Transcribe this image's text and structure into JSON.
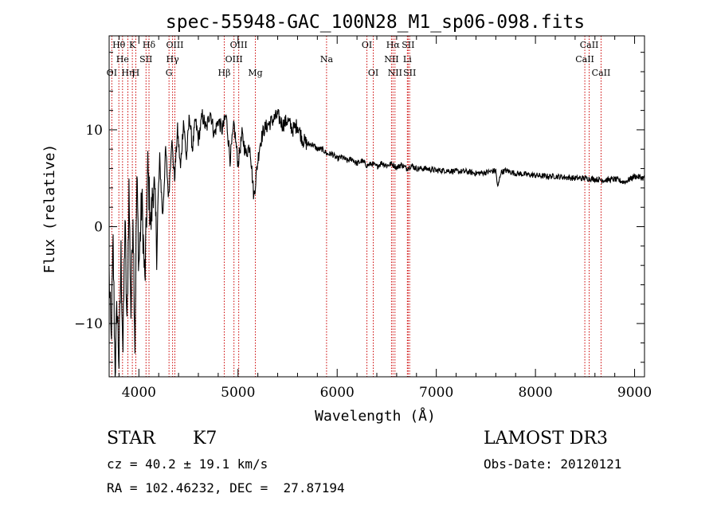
{
  "chart_data": {
    "type": "line",
    "title": "spec-55948-GAC_100N28_M1_sp06-098.fits",
    "xlabel": "Wavelength (Å)",
    "ylabel": "Flux (relative)",
    "xlim": [
      3700,
      9100
    ],
    "ylim": [
      -15.5,
      19.7
    ],
    "x_ticks": [
      4000,
      5000,
      6000,
      7000,
      8000,
      9000
    ],
    "y_ticks": [
      -10,
      0,
      10
    ],
    "x_tick_labels": [
      "4000",
      "5000",
      "6000",
      "7000",
      "8000",
      "9000"
    ],
    "y_tick_labels": [
      "−10",
      "0",
      "10"
    ],
    "grid": false,
    "legend": "none",
    "series": [
      {
        "name": "flux",
        "x": [
          3700,
          3720,
          3740,
          3760,
          3780,
          3800,
          3820,
          3840,
          3860,
          3880,
          3900,
          3920,
          3940,
          3960,
          3980,
          4000,
          4030,
          4060,
          4090,
          4120,
          4150,
          4180,
          4210,
          4240,
          4270,
          4300,
          4330,
          4360,
          4390,
          4420,
          4450,
          4480,
          4510,
          4540,
          4570,
          4600,
          4640,
          4680,
          4720,
          4760,
          4800,
          4840,
          4880,
          4920,
          4960,
          5000,
          5040,
          5080,
          5120,
          5160,
          5190,
          5220,
          5260,
          5300,
          5350,
          5400,
          5450,
          5500,
          5550,
          5600,
          5650,
          5700,
          5750,
          5800,
          5850,
          5900,
          5950,
          6000,
          6050,
          6100,
          6150,
          6200,
          6250,
          6300,
          6350,
          6400,
          6450,
          6500,
          6550,
          6600,
          6650,
          6700,
          6750,
          6800,
          6900,
          7000,
          7100,
          7200,
          7300,
          7400,
          7500,
          7600,
          7620,
          7650,
          7700,
          7800,
          7900,
          8000,
          8100,
          8200,
          8300,
          8400,
          8500,
          8600,
          8700,
          8800,
          8900,
          9000,
          9100
        ],
        "y": [
          -5,
          -12,
          -2,
          -15,
          -8,
          -14,
          -3,
          -13,
          1,
          -11,
          4,
          -9,
          2,
          -12,
          5,
          -4,
          3,
          -6,
          6,
          0,
          5,
          -2,
          7,
          1,
          8,
          3,
          9,
          5,
          10,
          6,
          11,
          7,
          11.5,
          8,
          11,
          9,
          11.5,
          10,
          12,
          9.5,
          11,
          10,
          11.5,
          7,
          10.5,
          6.5,
          9.5,
          7.5,
          8.5,
          3,
          6,
          8.5,
          10,
          10.5,
          11,
          11.5,
          10.5,
          11,
          10,
          10.5,
          9,
          8.5,
          8.5,
          8,
          8,
          7.5,
          7.5,
          7,
          7.2,
          6.8,
          7,
          6.5,
          6.8,
          6.3,
          6.5,
          6.2,
          6.6,
          6.3,
          6.5,
          6.1,
          6.4,
          6,
          6.3,
          6,
          6,
          5.8,
          5.8,
          5.7,
          5.7,
          5.5,
          5.6,
          5.8,
          4,
          5.6,
          5.8,
          5.5,
          5.4,
          5.3,
          5.2,
          5.2,
          5.1,
          5,
          5,
          4.9,
          4.8,
          4.9,
          4.6,
          5.2,
          5
        ]
      }
    ],
    "line_markers": [
      {
        "label": "OI",
        "wavelength": 3727,
        "row": 2
      },
      {
        "label": "Hθ",
        "wavelength": 3798,
        "row": 0
      },
      {
        "label": "He",
        "wavelength": 3835,
        "row": 1
      },
      {
        "label": "Hη",
        "wavelength": 3889,
        "row": 2
      },
      {
        "label": "K",
        "wavelength": 3934,
        "row": 0
      },
      {
        "label": "H",
        "wavelength": 3969,
        "row": 2
      },
      {
        "label": "SII",
        "wavelength": 4072,
        "row": 1
      },
      {
        "label": "Hδ",
        "wavelength": 4102,
        "row": 0
      },
      {
        "label": "G",
        "wavelength": 4304,
        "row": 2
      },
      {
        "label": "Hγ",
        "wavelength": 4340,
        "row": 1
      },
      {
        "label": "OIII",
        "wavelength": 4363,
        "row": 0
      },
      {
        "label": "Hβ",
        "wavelength": 4861,
        "row": 2
      },
      {
        "label": "OIII",
        "wavelength": 4959,
        "row": 1
      },
      {
        "label": "OIII",
        "wavelength": 5007,
        "row": 0
      },
      {
        "label": "Mg",
        "wavelength": 5175,
        "row": 2
      },
      {
        "label": "Na",
        "wavelength": 5893,
        "row": 1
      },
      {
        "label": "OI",
        "wavelength": 6300,
        "row": 0
      },
      {
        "label": "OI",
        "wavelength": 6364,
        "row": 2
      },
      {
        "label": "NII",
        "wavelength": 6548,
        "row": 1
      },
      {
        "label": "Hα",
        "wavelength": 6563,
        "row": 0
      },
      {
        "label": "NII",
        "wavelength": 6583,
        "row": 2
      },
      {
        "label": "Li",
        "wavelength": 6708,
        "row": 1
      },
      {
        "label": "SII",
        "wavelength": 6716,
        "row": 0
      },
      {
        "label": "SII",
        "wavelength": 6731,
        "row": 2
      },
      {
        "label": "CaII",
        "wavelength": 8498,
        "row": 1
      },
      {
        "label": "CaII",
        "wavelength": 8542,
        "row": 0
      },
      {
        "label": "CaII",
        "wavelength": 8662,
        "row": 2
      }
    ],
    "colors": {
      "marker": "#cc0000",
      "trace": "#000000",
      "axes": "#000000"
    }
  },
  "info": {
    "class": "STAR",
    "subclass": "K7",
    "survey": "LAMOST DR3",
    "redshift": "cz = 40.2 ± 19.1 km/s",
    "obs_date": "Obs-Date: 20120121",
    "coords": "RA = 102.46232, DEC =  27.87194"
  }
}
